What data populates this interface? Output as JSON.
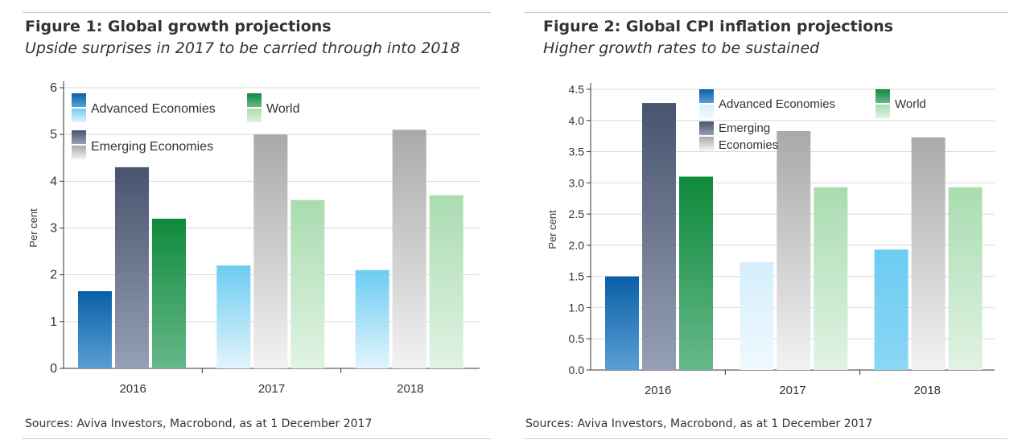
{
  "figures": [
    {
      "title": "Figure 1: Global growth projections",
      "subtitle": "Upside surprises in 2017 to be carried through into 2018",
      "source": "Sources: Aviva Investors, Macrobond, as at 1 December 2017"
    },
    {
      "title": "Figure 2: Global CPI inflation projections",
      "subtitle": "Higher growth rates to be sustained",
      "source": "Sources: Aviva Investors, Macrobond, as at 1 December 2017"
    }
  ],
  "chart_data": [
    {
      "type": "bar",
      "ylabel": "Per cent",
      "ylim": [
        0,
        6
      ],
      "yticks": [
        "0",
        "1",
        "2",
        "3",
        "4",
        "5",
        "6"
      ],
      "grid": true,
      "categories": [
        "2016",
        "2017",
        "2018"
      ],
      "series": [
        {
          "name": "Advanced Economies",
          "values": [
            1.65,
            2.2,
            2.1
          ]
        },
        {
          "name": "Emerging Economies",
          "values": [
            4.3,
            5.0,
            5.1
          ]
        },
        {
          "name": "World",
          "values": [
            3.2,
            3.6,
            3.7
          ]
        }
      ],
      "legend_placement": "top-left",
      "legend_labels": [
        "Advanced Economies",
        "Emerging Economies",
        "World"
      ],
      "colors": {
        "advanced_dark": [
          "#0a5fa8",
          "#5a9fd4"
        ],
        "advanced_light": [
          "#6cccf2",
          "#e2f4fc"
        ],
        "emerging_dark": [
          "#48546e",
          "#96a0b4"
        ],
        "emerging_light": [
          "#a9a9a9",
          "#f2f2f2"
        ],
        "world_dark": [
          "#0f8a3c",
          "#66b889"
        ],
        "world_light": [
          "#a9dcb0",
          "#e0f3e3"
        ]
      }
    },
    {
      "type": "bar",
      "ylabel": "Per cent",
      "ylim": [
        0,
        4.5
      ],
      "yticks": [
        "0.0",
        "0.5",
        "1.0",
        "1.5",
        "2.0",
        "2.5",
        "3.0",
        "3.5",
        "4.0",
        "4.5"
      ],
      "grid": true,
      "categories": [
        "2016",
        "2017",
        "2018"
      ],
      "series": [
        {
          "name": "Advanced Economies",
          "values": [
            1.5,
            1.73,
            1.93
          ]
        },
        {
          "name": "Emerging Economies",
          "values": [
            4.28,
            3.83,
            3.73
          ]
        },
        {
          "name": "World",
          "values": [
            3.1,
            2.93,
            2.93
          ]
        }
      ],
      "legend_placement": "top",
      "legend_labels": [
        "Advanced Economies",
        "Emerging",
        "Economies",
        "World"
      ],
      "colors": {
        "advanced_2016": [
          "#0a5fa8",
          "#5a9fd4"
        ],
        "advanced_2017": [
          "#d4eefb",
          "#f0f9fe"
        ],
        "advanced_2018": [
          "#6cccf2",
          "#8ad6f5"
        ],
        "emerging_dark": [
          "#48546e",
          "#96a0b4"
        ],
        "emerging_light": [
          "#a9a9a9",
          "#f2f2f2"
        ],
        "world_dark": [
          "#0f8a3c",
          "#66b889"
        ],
        "world_light": [
          "#a9dcb0",
          "#e0f3e3"
        ]
      }
    }
  ]
}
